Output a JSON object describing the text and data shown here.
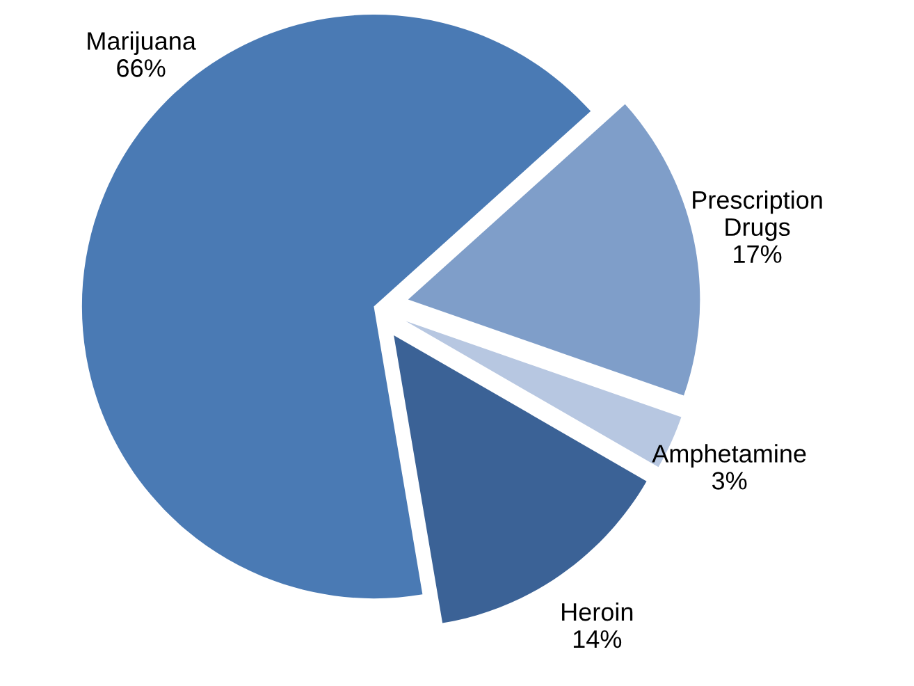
{
  "chart_data": {
    "type": "pie",
    "categories": [
      "Marijuana",
      "Prescription\nDrugs",
      "Amphetamine",
      "Heroin"
    ],
    "values": [
      66,
      17,
      3,
      14
    ],
    "value_labels": [
      "66%",
      "17%",
      "3%",
      "14%"
    ],
    "colors": [
      "#4a7ab4",
      "#7f9ec9",
      "#b7c7e1",
      "#3b6296"
    ],
    "legend": false
  }
}
